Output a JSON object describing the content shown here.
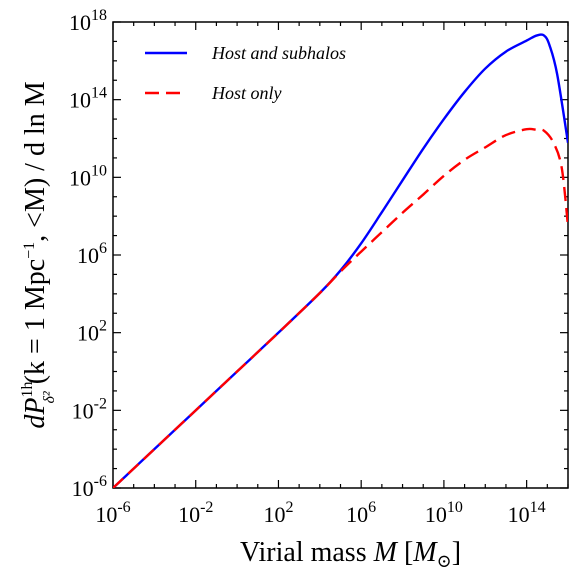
{
  "chart_data": {
    "type": "line",
    "xscale": "log",
    "yscale": "log",
    "xlim": [
      1e-06,
      1e+16
    ],
    "ylim": [
      1e-06,
      1e+18
    ],
    "xticks": [
      {
        "base": "10",
        "exp": "-6"
      },
      {
        "base": "10",
        "exp": "-2"
      },
      {
        "base": "10",
        "exp": "2"
      },
      {
        "base": "10",
        "exp": "6"
      },
      {
        "base": "10",
        "exp": "10"
      },
      {
        "base": "10",
        "exp": "14"
      }
    ],
    "yticks": [
      {
        "base": "10",
        "exp": "-6"
      },
      {
        "base": "10",
        "exp": "-2"
      },
      {
        "base": "10",
        "exp": "2"
      },
      {
        "base": "10",
        "exp": "6"
      },
      {
        "base": "10",
        "exp": "10"
      },
      {
        "base": "10",
        "exp": "14"
      },
      {
        "base": "10",
        "exp": "18"
      }
    ],
    "xlabel": {
      "text": "Virial mass ",
      "var": "M",
      "unit_open": " [",
      "unit_var": "M",
      "unit_sub": "⊙",
      "unit_close": "]"
    },
    "ylabel": {
      "d": "dP",
      "sup": "1h",
      "sub": "δ²",
      "args": " (k = 1 Mpc",
      "args_sup": "−1",
      "args_tail": ", <M) / d ln M"
    },
    "legend": {
      "placement": "top-left"
    },
    "colors": {
      "host_and_subhalos": "#0000ff",
      "host_only": "#ff0000"
    },
    "series": [
      {
        "name": "Host and subhalos",
        "style": "solid",
        "points": [
          {
            "x": 1e-06,
            "y": 1e-06
          },
          {
            "x": 0.0001,
            "y": 0.0001
          },
          {
            "x": 0.01,
            "y": 0.01
          },
          {
            "x": 1,
            "y": 1
          },
          {
            "x": 100.0,
            "y": 100.0
          },
          {
            "x": 10000.0,
            "y": 11000.0
          },
          {
            "x": 100000.0,
            "y": 160000.0
          },
          {
            "x": 1000000.0,
            "y": 4000000.0
          },
          {
            "x": 10000000.0,
            "y": 160000000.0
          },
          {
            "x": 100000000.0,
            "y": 7000000000.0
          },
          {
            "x": 1000000000.0,
            "y": 300000000000.0
          },
          {
            "x": 10000000000.0,
            "y": 10000000000000.0
          },
          {
            "x": 100000000000.0,
            "y": 250000000000000.0
          },
          {
            "x": 1000000000000.0,
            "y": 4000000000000000.0
          },
          {
            "x": 10000000000000.0,
            "y": 3e+16
          },
          {
            "x": 100000000000000.0,
            "y": 1.1e+17
          },
          {
            "x": 300000000000000.0,
            "y": 2e+17
          },
          {
            "x": 700000000000000.0,
            "y": 2e+17
          },
          {
            "x": 1300000000000000.0,
            "y": 6e+16
          },
          {
            "x": 3000000000000000.0,
            "y": 2000000000000000.0
          },
          {
            "x": 1e+16,
            "y": 600000000000.0
          }
        ]
      },
      {
        "name": "Host only",
        "style": "dashed",
        "points": [
          {
            "x": 1e-06,
            "y": 1e-06
          },
          {
            "x": 0.0001,
            "y": 0.0001
          },
          {
            "x": 0.01,
            "y": 0.01
          },
          {
            "x": 1,
            "y": 1
          },
          {
            "x": 100.0,
            "y": 100.0
          },
          {
            "x": 10000.0,
            "y": 11000.0
          },
          {
            "x": 100000.0,
            "y": 140000.0
          },
          {
            "x": 1000000.0,
            "y": 1500000.0
          },
          {
            "x": 10000000.0,
            "y": 15000000.0
          },
          {
            "x": 100000000.0,
            "y": 150000000.0
          },
          {
            "x": 1000000000.0,
            "y": 1300000000.0
          },
          {
            "x": 10000000000.0,
            "y": 12000000000.0
          },
          {
            "x": 100000000000.0,
            "y": 80000000000.0
          },
          {
            "x": 1000000000000.0,
            "y": 350000000000.0
          },
          {
            "x": 10000000000000.0,
            "y": 1500000000000.0
          },
          {
            "x": 100000000000000.0,
            "y": 3000000000000.0
          },
          {
            "x": 300000000000000.0,
            "y": 2800000000000.0
          },
          {
            "x": 700000000000000.0,
            "y": 2500000000000.0
          },
          {
            "x": 2000000000000000.0,
            "y": 600000000000.0
          },
          {
            "x": 5000000000000000.0,
            "y": 30000000000.0
          },
          {
            "x": 1e+16,
            "y": 30000000.0
          }
        ]
      }
    ]
  }
}
